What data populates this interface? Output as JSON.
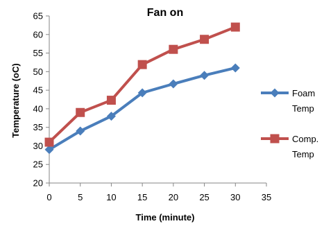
{
  "chart_data": {
    "type": "line",
    "title": "Fan on",
    "xlabel": "Time (minute)",
    "ylabel": "Temperature (oC)",
    "x": [
      0,
      5,
      10,
      15,
      20,
      25,
      30
    ],
    "xlim": [
      0,
      35
    ],
    "xticks": [
      0,
      5,
      10,
      15,
      20,
      25,
      30,
      35
    ],
    "ylim": [
      20,
      65
    ],
    "yticks": [
      20,
      25,
      30,
      35,
      40,
      45,
      50,
      55,
      60,
      65
    ],
    "grid": false,
    "legend_position": "right",
    "series": [
      {
        "name": "Foam Temp",
        "legend_lines": [
          "Foam",
          "Temp"
        ],
        "marker": "diamond",
        "color": "#4a7ebb",
        "values": [
          29,
          34,
          38,
          44.3,
          46.7,
          49,
          51
        ]
      },
      {
        "name": "Comp. Temp",
        "legend_lines": [
          "Comp.",
          "Temp"
        ],
        "marker": "square",
        "color": "#c0504d",
        "values": [
          31,
          39,
          42.3,
          51.9,
          56,
          58.7,
          62
        ]
      }
    ]
  }
}
